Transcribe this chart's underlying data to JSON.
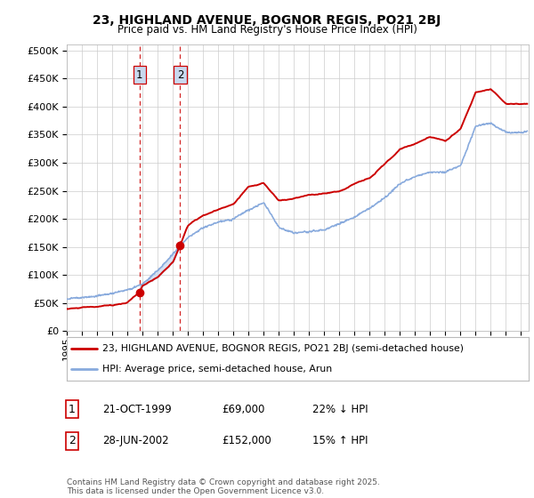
{
  "title": "23, HIGHLAND AVENUE, BOGNOR REGIS, PO21 2BJ",
  "subtitle": "Price paid vs. HM Land Registry's House Price Index (HPI)",
  "background_color": "#ffffff",
  "grid_color": "#cccccc",
  "sale1_date": 1999.81,
  "sale1_price": 69000,
  "sale1_label": "1",
  "sale2_date": 2002.49,
  "sale2_price": 152000,
  "sale2_label": "2",
  "legend_entry1": "23, HIGHLAND AVENUE, BOGNOR REGIS, PO21 2BJ (semi-detached house)",
  "legend_entry2": "HPI: Average price, semi-detached house, Arun",
  "table_row1": [
    "1",
    "21-OCT-1999",
    "£69,000",
    "22% ↓ HPI"
  ],
  "table_row2": [
    "2",
    "28-JUN-2002",
    "£152,000",
    "15% ↑ HPI"
  ],
  "footer": "Contains HM Land Registry data © Crown copyright and database right 2025.\nThis data is licensed under the Open Government Licence v3.0.",
  "line_color_property": "#cc0000",
  "line_color_hpi": "#88aadd",
  "shade_color": "#c8d8ee",
  "ylim": [
    0,
    510000
  ],
  "xlim_start": 1995.0,
  "xlim_end": 2025.5,
  "figwidth": 6.0,
  "figheight": 5.6,
  "dpi": 100
}
